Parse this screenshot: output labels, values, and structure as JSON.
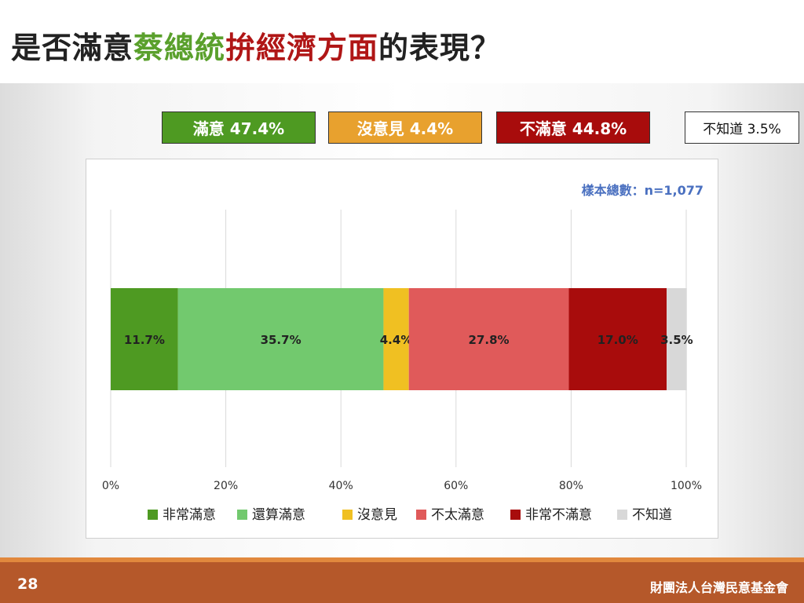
{
  "title": {
    "part1": "是否滿意",
    "part2": "蔡總統",
    "part3": "拚經濟方面",
    "part4": "的表現？"
  },
  "summary": [
    {
      "label": "滿意 47.4%",
      "color": "#4e9a22"
    },
    {
      "label": "沒意見 4.4%",
      "color": "#e8a12e"
    },
    {
      "label": "不滿意 44.8%",
      "color": "#a80c0c"
    },
    {
      "label": "不知道 3.5%",
      "color": "#ffffff"
    }
  ],
  "sample_size": "樣本總數：n=1,077",
  "chart_data": {
    "type": "bar",
    "orientation": "horizontal",
    "stacked": true,
    "xlim": [
      0,
      100
    ],
    "xticks": [
      "0%",
      "20%",
      "40%",
      "60%",
      "80%",
      "100%"
    ],
    "grid": true,
    "legend_position": "bottom",
    "series": [
      {
        "name": "非常滿意",
        "value": 11.7,
        "label": "11.7%",
        "color": "#4e9a22"
      },
      {
        "name": "還算滿意",
        "value": 35.7,
        "label": "35.7%",
        "color": "#72c96e"
      },
      {
        "name": "沒意見",
        "value": 4.4,
        "label": "4.4%",
        "color": "#f0c022"
      },
      {
        "name": "不太滿意",
        "value": 27.8,
        "label": "27.8%",
        "color": "#e05a5a"
      },
      {
        "name": "非常不滿意",
        "value": 17.0,
        "label": "17.0%",
        "color": "#a80c0c"
      },
      {
        "name": "不知道",
        "value": 3.5,
        "label": "3.5%",
        "color": "#d8d8d8"
      }
    ]
  },
  "footer": {
    "page_number": "28",
    "organization": "財團法人台灣民意基金會"
  }
}
